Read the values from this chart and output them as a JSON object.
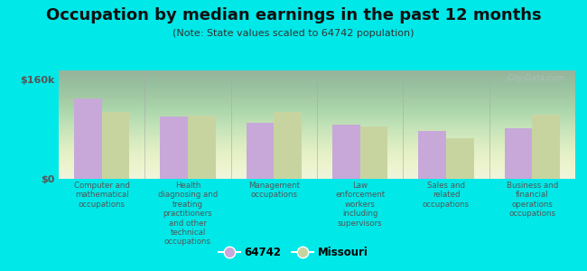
{
  "title": "Occupation by median earnings in the past 12 months",
  "subtitle": "(Note: State values scaled to 64742 population)",
  "categories": [
    "Computer and\nmathematical\noccupations",
    "Health\ndiagnosing and\ntreating\npractitioners\nand other\ntechnical\noccupations",
    "Management\noccupations",
    "Law\nenforcement\nworkers\nincluding\nsupervisors",
    "Sales and\nrelated\noccupations",
    "Business and\nfinancial\noperations\noccupations"
  ],
  "values_64742": [
    130000,
    100000,
    90000,
    88000,
    78000,
    82000
  ],
  "values_missouri": [
    108000,
    102000,
    108000,
    85000,
    65000,
    103000
  ],
  "bar_color_64742": "#c8a8d8",
  "bar_color_missouri": "#c8d4a0",
  "background_color": "#00e8e8",
  "plot_bg_top": "#e8f0d8",
  "plot_bg_bottom": "#f8faf0",
  "ylim": [
    0,
    175000
  ],
  "y_label_val": 160000,
  "ytick_labels": [
    "$0",
    "$160k"
  ],
  "watermark": "City-Data.com",
  "legend_label_1": "64742",
  "legend_label_2": "Missouri",
  "title_fontsize": 13,
  "subtitle_fontsize": 8,
  "tick_label_color": "#555555",
  "ytick_color": "#555555",
  "divider_color": "#aaaaaa",
  "bar_width": 0.32
}
